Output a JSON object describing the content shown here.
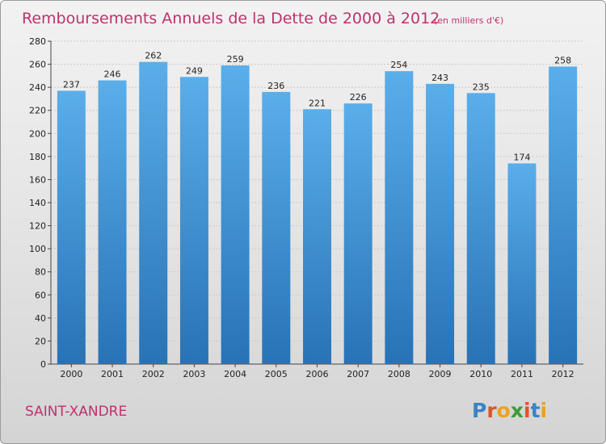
{
  "chart_data": {
    "type": "bar",
    "title": "Remboursements Annuels de la Dette de 2000 à 2012",
    "unit": "(en milliers d'€)",
    "categories": [
      "2000",
      "2001",
      "2002",
      "2003",
      "2004",
      "2005",
      "2006",
      "2007",
      "2008",
      "2009",
      "2010",
      "2011",
      "2012"
    ],
    "values": [
      237,
      246,
      262,
      249,
      259,
      236,
      221,
      226,
      254,
      243,
      235,
      174,
      258
    ],
    "ylim": [
      0,
      280
    ],
    "yticks": [
      0,
      20,
      40,
      60,
      80,
      100,
      120,
      140,
      160,
      180,
      200,
      220,
      240,
      260,
      280
    ],
    "xlabel": "",
    "ylabel": "",
    "grid": true,
    "colors": {
      "bar_top": "#5aaeea",
      "bar_bottom": "#2872b6",
      "title": "#c0306e"
    }
  },
  "footer": {
    "commune": "SAINT-XANDRE",
    "logo_letters": [
      "P",
      "r",
      "o",
      "x",
      "i",
      "t",
      "i"
    ],
    "logo_colors": [
      "#3a83c4",
      "#e0532a",
      "#f0a21c",
      "#3f9b3a",
      "#e0532a",
      "#3a83c4",
      "#f0a21c"
    ]
  }
}
